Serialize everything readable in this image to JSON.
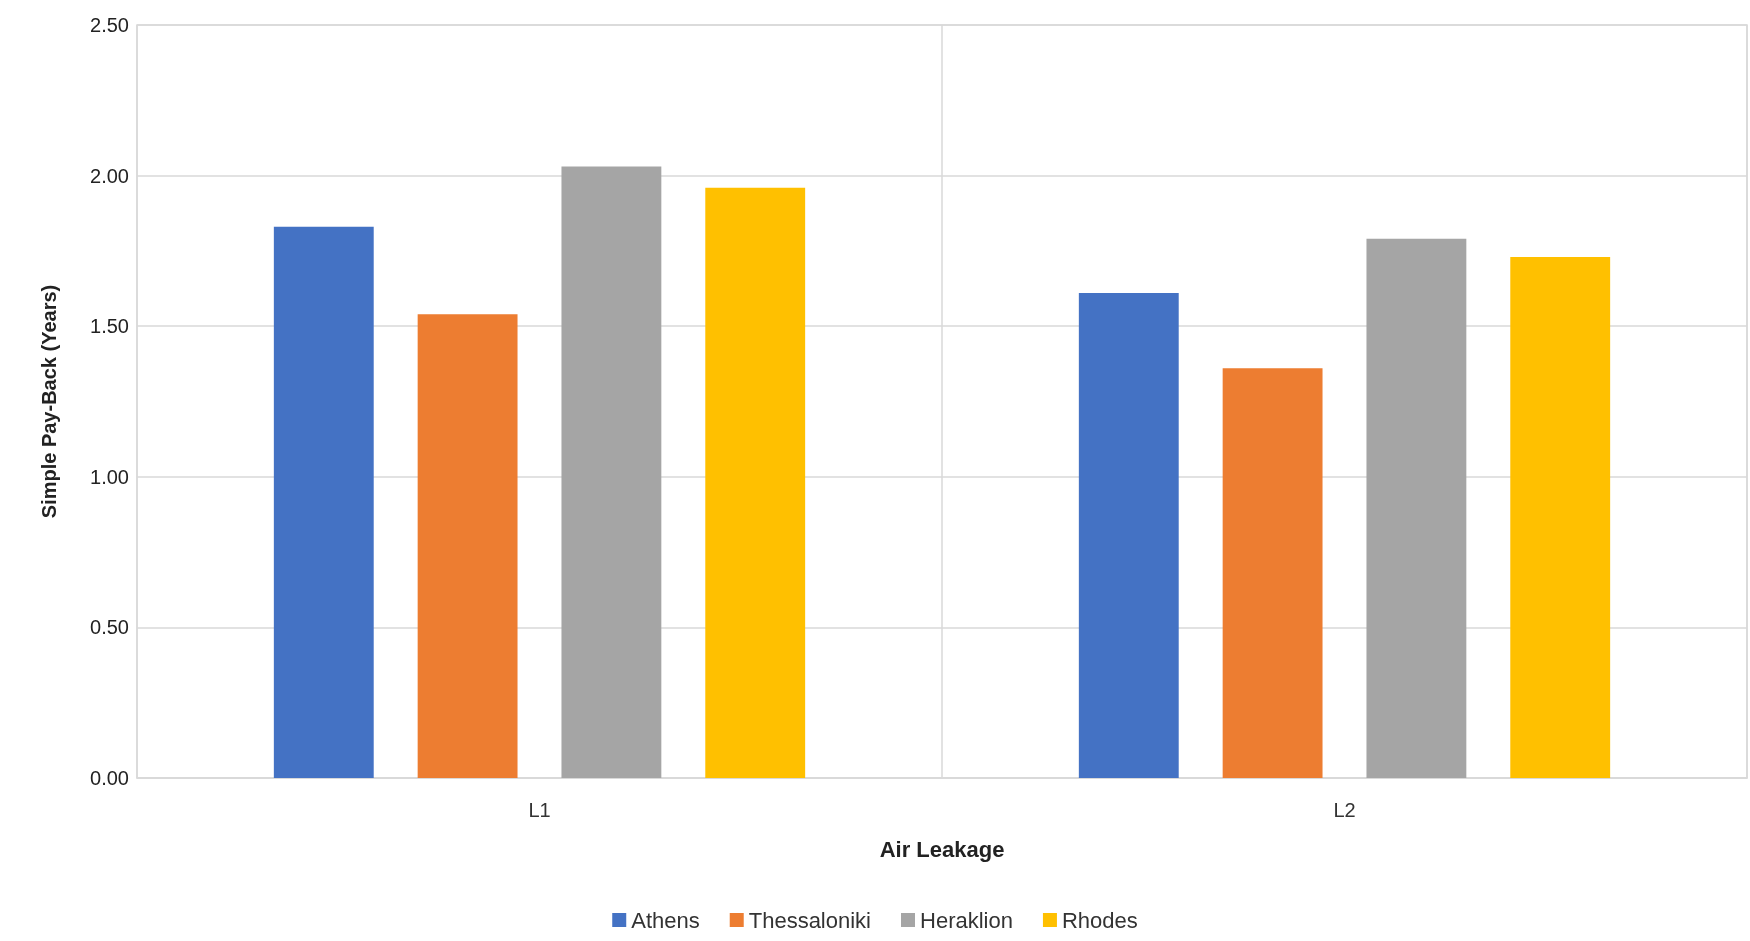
{
  "chart_data": {
    "type": "bar",
    "xlabel": "Air Leakage",
    "ylabel": "Simple Pay-Back (Years)",
    "categories": [
      "L1",
      "L2"
    ],
    "series": [
      {
        "name": "Athens",
        "color": "#4472c4",
        "values": [
          1.83,
          1.61
        ]
      },
      {
        "name": "Thessaloniki",
        "color": "#ed7d31",
        "values": [
          1.54,
          1.36
        ]
      },
      {
        "name": "Heraklion",
        "color": "#a5a5a5",
        "values": [
          2.03,
          1.79
        ]
      },
      {
        "name": "Rhodes",
        "color": "#ffc000",
        "values": [
          1.96,
          1.73
        ]
      }
    ],
    "ylim": [
      0,
      2.5
    ],
    "yticks": [
      {
        "value": 0,
        "label": "0.00"
      },
      {
        "value": 0.5,
        "label": "0.50"
      },
      {
        "value": 1,
        "label": "1.00"
      },
      {
        "value": 1.5,
        "label": "1.50"
      },
      {
        "value": 2,
        "label": "2.00"
      },
      {
        "value": 2.5,
        "label": "2.50"
      }
    ],
    "grid": true,
    "legend": "bottom"
  }
}
